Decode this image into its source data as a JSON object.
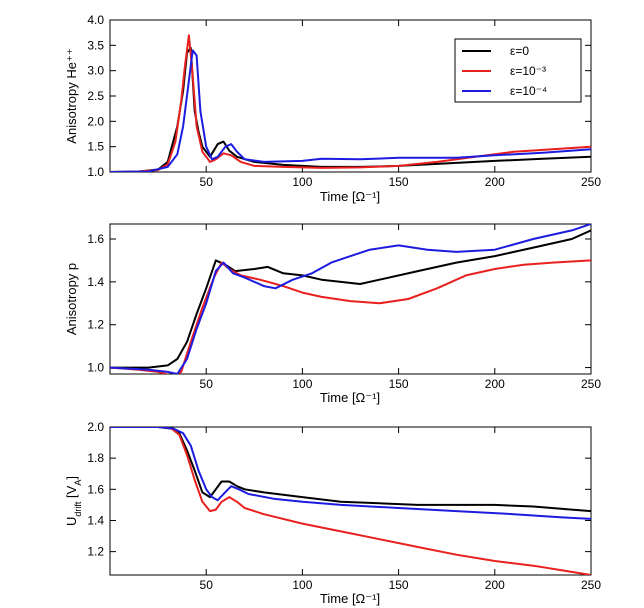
{
  "chart_data": [
    {
      "type": "line",
      "title": "",
      "xlabel": "Time [Ω⁻¹]",
      "ylabel": "Anisotropy He⁺⁺",
      "xlim": [
        0,
        250
      ],
      "ylim": [
        1.0,
        4.0
      ],
      "xticks": [
        50,
        100,
        150,
        200,
        250
      ],
      "yticks": [
        1.0,
        1.5,
        2.0,
        2.5,
        3.0,
        3.5,
        4.0
      ],
      "ytick_labels": [
        "1.0",
        "1.5",
        "2.0",
        "2.5",
        "3.0",
        "3.5",
        "4.0"
      ],
      "grid": false,
      "legend": {
        "position": "top-right",
        "entries": [
          {
            "name": "ε=0",
            "color": "#000000"
          },
          {
            "name": "ε=10⁻³",
            "color": "#e8201e"
          },
          {
            "name": "ε=10⁻⁴",
            "color": "#1c1ce0"
          }
        ]
      },
      "series": [
        {
          "name": "ε=0",
          "color": "#000000",
          "points": [
            [
              0,
              1.0
            ],
            [
              15,
              1.01
            ],
            [
              25,
              1.05
            ],
            [
              30,
              1.2
            ],
            [
              35,
              1.9
            ],
            [
              38,
              2.6
            ],
            [
              40,
              3.35
            ],
            [
              42,
              3.45
            ],
            [
              44,
              2.2
            ],
            [
              46,
              1.8
            ],
            [
              48,
              1.5
            ],
            [
              52,
              1.3
            ],
            [
              56,
              1.55
            ],
            [
              59,
              1.6
            ],
            [
              62,
              1.42
            ],
            [
              66,
              1.3
            ],
            [
              75,
              1.2
            ],
            [
              90,
              1.14
            ],
            [
              110,
              1.1
            ],
            [
              130,
              1.1
            ],
            [
              150,
              1.12
            ],
            [
              175,
              1.17
            ],
            [
              200,
              1.22
            ],
            [
              225,
              1.26
            ],
            [
              250,
              1.3
            ]
          ]
        },
        {
          "name": "ε=10⁻³",
          "color": "#e8201e",
          "points": [
            [
              0,
              1.0
            ],
            [
              15,
              1.01
            ],
            [
              25,
              1.04
            ],
            [
              30,
              1.15
            ],
            [
              34,
              1.6
            ],
            [
              37,
              2.4
            ],
            [
              39,
              3.1
            ],
            [
              41,
              3.7
            ],
            [
              43,
              2.9
            ],
            [
              45,
              1.9
            ],
            [
              48,
              1.4
            ],
            [
              52,
              1.2
            ],
            [
              55,
              1.25
            ],
            [
              59,
              1.37
            ],
            [
              63,
              1.33
            ],
            [
              68,
              1.2
            ],
            [
              75,
              1.12
            ],
            [
              90,
              1.1
            ],
            [
              110,
              1.08
            ],
            [
              130,
              1.09
            ],
            [
              150,
              1.12
            ],
            [
              170,
              1.2
            ],
            [
              190,
              1.3
            ],
            [
              210,
              1.4
            ],
            [
              230,
              1.45
            ],
            [
              250,
              1.5
            ]
          ]
        },
        {
          "name": "ε=10⁻⁴",
          "color": "#1c1ce0",
          "points": [
            [
              0,
              1.0
            ],
            [
              20,
              1.01
            ],
            [
              30,
              1.1
            ],
            [
              35,
              1.35
            ],
            [
              38,
              1.9
            ],
            [
              41,
              2.8
            ],
            [
              43,
              3.4
            ],
            [
              45,
              3.3
            ],
            [
              47,
              2.2
            ],
            [
              50,
              1.5
            ],
            [
              53,
              1.25
            ],
            [
              56,
              1.3
            ],
            [
              60,
              1.5
            ],
            [
              63,
              1.55
            ],
            [
              66,
              1.4
            ],
            [
              70,
              1.25
            ],
            [
              80,
              1.2
            ],
            [
              100,
              1.22
            ],
            [
              110,
              1.26
            ],
            [
              130,
              1.25
            ],
            [
              150,
              1.28
            ],
            [
              180,
              1.28
            ],
            [
              200,
              1.33
            ],
            [
              225,
              1.38
            ],
            [
              250,
              1.45
            ]
          ]
        }
      ]
    },
    {
      "type": "line",
      "title": "",
      "xlabel": "Time [Ω⁻¹]",
      "ylabel": "Anisotropy p",
      "xlim": [
        0,
        250
      ],
      "ylim": [
        0.97,
        1.67
      ],
      "xticks": [
        50,
        100,
        150,
        200,
        250
      ],
      "yticks": [
        1.0,
        1.2,
        1.4,
        1.6
      ],
      "ytick_labels": [
        "1.0",
        "1.2",
        "1.4",
        "1.6"
      ],
      "grid": false,
      "series": [
        {
          "name": "ε=0",
          "color": "#000000",
          "points": [
            [
              0,
              1.0
            ],
            [
              20,
              1.0
            ],
            [
              30,
              1.01
            ],
            [
              35,
              1.04
            ],
            [
              40,
              1.12
            ],
            [
              45,
              1.25
            ],
            [
              50,
              1.37
            ],
            [
              55,
              1.5
            ],
            [
              60,
              1.48
            ],
            [
              65,
              1.45
            ],
            [
              75,
              1.46
            ],
            [
              82,
              1.47
            ],
            [
              90,
              1.44
            ],
            [
              100,
              1.43
            ],
            [
              110,
              1.41
            ],
            [
              120,
              1.4
            ],
            [
              130,
              1.39
            ],
            [
              140,
              1.41
            ],
            [
              160,
              1.45
            ],
            [
              180,
              1.49
            ],
            [
              200,
              1.52
            ],
            [
              220,
              1.56
            ],
            [
              240,
              1.6
            ],
            [
              250,
              1.64
            ]
          ]
        },
        {
          "name": "ε=10⁻³",
          "color": "#e8201e",
          "points": [
            [
              0,
              1.0
            ],
            [
              15,
              0.99
            ],
            [
              25,
              0.98
            ],
            [
              33,
              0.96
            ],
            [
              37,
              0.98
            ],
            [
              42,
              1.12
            ],
            [
              48,
              1.28
            ],
            [
              54,
              1.42
            ],
            [
              58,
              1.49
            ],
            [
              62,
              1.46
            ],
            [
              68,
              1.43
            ],
            [
              78,
              1.41
            ],
            [
              90,
              1.38
            ],
            [
              100,
              1.35
            ],
            [
              110,
              1.33
            ],
            [
              125,
              1.31
            ],
            [
              140,
              1.3
            ],
            [
              155,
              1.32
            ],
            [
              170,
              1.37
            ],
            [
              185,
              1.43
            ],
            [
              200,
              1.46
            ],
            [
              215,
              1.48
            ],
            [
              230,
              1.49
            ],
            [
              250,
              1.5
            ]
          ]
        },
        {
          "name": "ε=10⁻⁴",
          "color": "#1c1ce0",
          "points": [
            [
              0,
              1.0
            ],
            [
              20,
              0.99
            ],
            [
              30,
              0.98
            ],
            [
              35,
              0.97
            ],
            [
              40,
              1.04
            ],
            [
              45,
              1.18
            ],
            [
              50,
              1.3
            ],
            [
              55,
              1.45
            ],
            [
              59,
              1.49
            ],
            [
              64,
              1.44
            ],
            [
              70,
              1.42
            ],
            [
              80,
              1.38
            ],
            [
              86,
              1.37
            ],
            [
              95,
              1.41
            ],
            [
              105,
              1.44
            ],
            [
              115,
              1.49
            ],
            [
              125,
              1.52
            ],
            [
              135,
              1.55
            ],
            [
              150,
              1.57
            ],
            [
              165,
              1.55
            ],
            [
              180,
              1.54
            ],
            [
              200,
              1.55
            ],
            [
              220,
              1.6
            ],
            [
              240,
              1.64
            ],
            [
              250,
              1.67
            ]
          ]
        }
      ]
    },
    {
      "type": "line",
      "title": "",
      "xlabel": "Time [Ω⁻¹]",
      "ylabel": "U_drift [V_A]",
      "ylabel_parts": {
        "u": "U",
        "drift": "drift",
        "mid": " [V",
        "a": "A",
        "end": "]"
      },
      "xlim": [
        0,
        250
      ],
      "ylim": [
        1.05,
        2.0
      ],
      "xticks": [
        50,
        100,
        150,
        200,
        250
      ],
      "yticks": [
        1.2,
        1.4,
        1.6,
        1.8,
        2.0
      ],
      "ytick_labels": [
        "1.2",
        "1.4",
        "1.6",
        "1.8",
        "2.0"
      ],
      "grid": false,
      "series": [
        {
          "name": "ε=0",
          "color": "#000000",
          "points": [
            [
              0,
              2.0
            ],
            [
              25,
              2.0
            ],
            [
              32,
              1.99
            ],
            [
              36,
              1.96
            ],
            [
              40,
              1.85
            ],
            [
              44,
              1.72
            ],
            [
              48,
              1.58
            ],
            [
              52,
              1.55
            ],
            [
              55,
              1.6
            ],
            [
              58,
              1.65
            ],
            [
              62,
              1.65
            ],
            [
              66,
              1.62
            ],
            [
              70,
              1.6
            ],
            [
              80,
              1.58
            ],
            [
              100,
              1.55
            ],
            [
              120,
              1.52
            ],
            [
              140,
              1.51
            ],
            [
              160,
              1.5
            ],
            [
              180,
              1.5
            ],
            [
              200,
              1.5
            ],
            [
              220,
              1.49
            ],
            [
              240,
              1.47
            ],
            [
              250,
              1.46
            ]
          ]
        },
        {
          "name": "ε=10⁻³",
          "color": "#e8201e",
          "points": [
            [
              0,
              2.0
            ],
            [
              25,
              2.0
            ],
            [
              32,
              1.99
            ],
            [
              36,
              1.95
            ],
            [
              40,
              1.82
            ],
            [
              44,
              1.66
            ],
            [
              48,
              1.52
            ],
            [
              52,
              1.46
            ],
            [
              55,
              1.47
            ],
            [
              58,
              1.52
            ],
            [
              62,
              1.55
            ],
            [
              66,
              1.52
            ],
            [
              70,
              1.48
            ],
            [
              80,
              1.44
            ],
            [
              100,
              1.38
            ],
            [
              120,
              1.33
            ],
            [
              140,
              1.28
            ],
            [
              160,
              1.23
            ],
            [
              180,
              1.18
            ],
            [
              200,
              1.14
            ],
            [
              220,
              1.11
            ],
            [
              240,
              1.07
            ],
            [
              250,
              1.05
            ]
          ]
        },
        {
          "name": "ε=10⁻⁴",
          "color": "#1c1ce0",
          "points": [
            [
              0,
              2.0
            ],
            [
              25,
              2.0
            ],
            [
              33,
              1.99
            ],
            [
              38,
              1.96
            ],
            [
              42,
              1.88
            ],
            [
              46,
              1.72
            ],
            [
              50,
              1.6
            ],
            [
              53,
              1.55
            ],
            [
              56,
              1.53
            ],
            [
              59,
              1.57
            ],
            [
              63,
              1.62
            ],
            [
              67,
              1.6
            ],
            [
              72,
              1.57
            ],
            [
              85,
              1.54
            ],
            [
              100,
              1.52
            ],
            [
              120,
              1.5
            ],
            [
              150,
              1.48
            ],
            [
              180,
              1.46
            ],
            [
              210,
              1.44
            ],
            [
              235,
              1.42
            ],
            [
              250,
              1.41
            ]
          ]
        }
      ]
    }
  ]
}
